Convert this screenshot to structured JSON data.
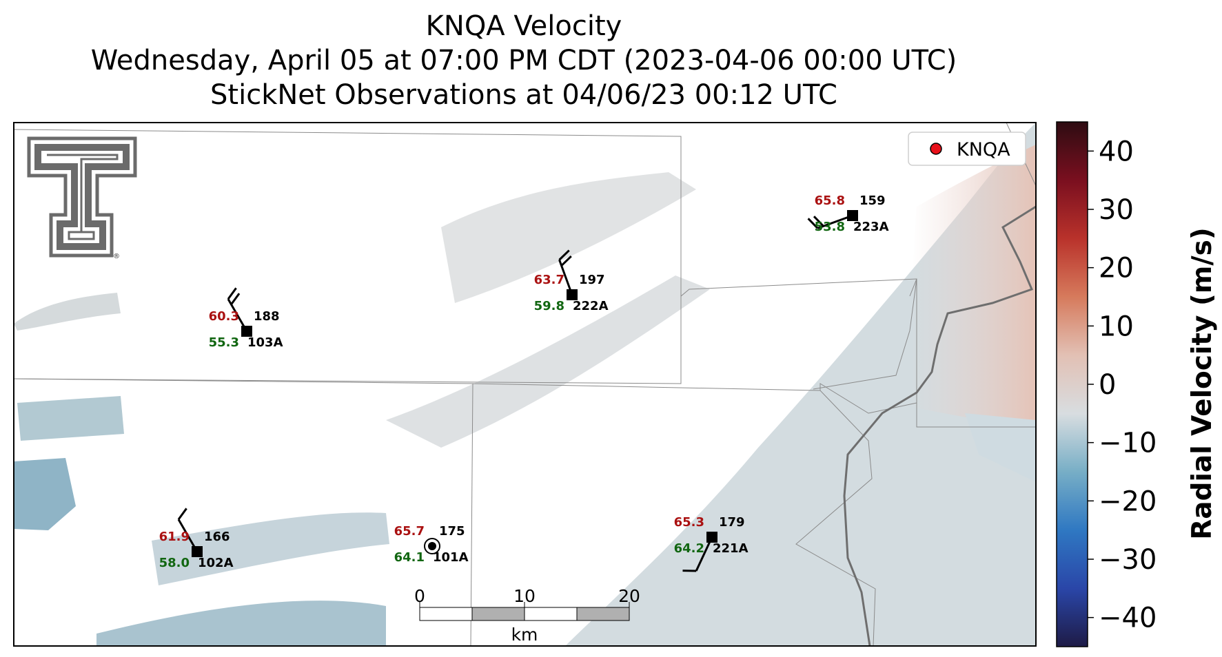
{
  "title": {
    "line1": "KNQA Velocity",
    "line2": "Wednesday, April 05 at 07:00 PM CDT (2023-04-06 00:00 UTC)",
    "line3": "StickNet Observations at 04/06/23 00:12 UTC"
  },
  "legend": {
    "label": "KNQA",
    "marker_color": "#e8101a"
  },
  "logo": {
    "name": "texas-tech-double-t",
    "mark": "®"
  },
  "colorbar": {
    "label": "Radial Velocity (m/s)",
    "min": -45,
    "max": 45,
    "ticks": [
      "40",
      "30",
      "20",
      "10",
      "0",
      "−10",
      "−20",
      "−30",
      "−40"
    ],
    "tick_values": [
      40,
      30,
      20,
      10,
      0,
      -10,
      -20,
      -30,
      -40
    ],
    "colors": [
      "#1e1b46",
      "#2a46a8",
      "#2f78c2",
      "#77aec6",
      "#d8dde0",
      "#e2c0b4",
      "#d67a5c",
      "#b9322b",
      "#7a0f1f",
      "#2e0c12"
    ]
  },
  "scalebar": {
    "ticks": [
      "0",
      "10",
      "20"
    ],
    "unit": "km"
  },
  "stations": [
    {
      "id": "103A",
      "temp": "60.3",
      "dew": "55.3",
      "pressure": "188",
      "wind_dir_deg": 330,
      "barbs": 2
    },
    {
      "id": "222A",
      "temp": "63.7",
      "dew": "59.8",
      "pressure": "197",
      "wind_dir_deg": 340,
      "barbs": 2
    },
    {
      "id": "223A",
      "temp": "65.8",
      "dew": "53.8",
      "pressure": "159",
      "wind_dir_deg": 250,
      "barbs": 2
    },
    {
      "id": "102A",
      "temp": "61.9",
      "dew": "58.0",
      "pressure": "166",
      "wind_dir_deg": 330,
      "barbs": 1
    },
    {
      "id": "101A",
      "temp": "65.7",
      "dew": "64.1",
      "pressure": "175",
      "calm": true
    },
    {
      "id": "221A",
      "temp": "65.3",
      "dew": "64.2",
      "pressure": "179",
      "wind_dir_deg": 205,
      "barbs": 1
    }
  ],
  "colors": {
    "temp": "#aa1111",
    "dew": "#116611",
    "station_text": "#000000",
    "border": "#7a7a7a",
    "interstate": "#777777"
  }
}
